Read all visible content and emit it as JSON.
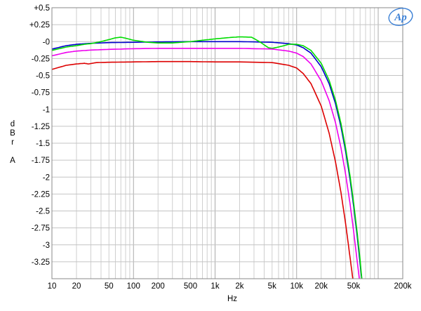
{
  "chart_data": {
    "type": "line",
    "xlabel": "Hz",
    "ylabel_lines": [
      "d",
      "B",
      "r",
      "",
      "A"
    ],
    "x_scale": "log",
    "xlim": [
      10,
      200000
    ],
    "ylim": [
      -3.5,
      0.5
    ],
    "grid": true,
    "x_ticks": [
      {
        "v": 10,
        "label": "10"
      },
      {
        "v": 20,
        "label": "20"
      },
      {
        "v": 50,
        "label": "50"
      },
      {
        "v": 100,
        "label": "100"
      },
      {
        "v": 200,
        "label": "200"
      },
      {
        "v": 500,
        "label": "500"
      },
      {
        "v": 1000,
        "label": "1k"
      },
      {
        "v": 2000,
        "label": "2k"
      },
      {
        "v": 5000,
        "label": "5k"
      },
      {
        "v": 10000,
        "label": "10k"
      },
      {
        "v": 20000,
        "label": "20k"
      },
      {
        "v": 50000,
        "label": "50k"
      },
      {
        "v": 200000,
        "label": "200k"
      }
    ],
    "y_ticks": [
      {
        "v": 0.5,
        "label": "+0.5"
      },
      {
        "v": 0.25,
        "label": "+0.25"
      },
      {
        "v": 0,
        "label": "-0"
      },
      {
        "v": -0.25,
        "label": "-0.25"
      },
      {
        "v": -0.5,
        "label": "-0.5"
      },
      {
        "v": -0.75,
        "label": "-0.75"
      },
      {
        "v": -1,
        "label": "-1"
      },
      {
        "v": -1.25,
        "label": "-1.25"
      },
      {
        "v": -1.5,
        "label": "-1.5"
      },
      {
        "v": -1.75,
        "label": "-1.75"
      },
      {
        "v": -2,
        "label": "-2"
      },
      {
        "v": -2.25,
        "label": "-2.25"
      },
      {
        "v": -2.5,
        "label": "-2.5"
      },
      {
        "v": -2.75,
        "label": "-2.75"
      },
      {
        "v": -3,
        "label": "-3"
      },
      {
        "v": -3.25,
        "label": "-3.25"
      }
    ],
    "series": [
      {
        "color": "#0000cc",
        "points": [
          [
            10,
            -0.11
          ],
          [
            15,
            -0.06
          ],
          [
            20,
            -0.04
          ],
          [
            30,
            -0.025
          ],
          [
            50,
            -0.015
          ],
          [
            100,
            -0.01
          ],
          [
            200,
            -0.005
          ],
          [
            500,
            0.0
          ],
          [
            1000,
            0.0
          ],
          [
            2000,
            0.0
          ],
          [
            5000,
            -0.01
          ],
          [
            8000,
            -0.03
          ],
          [
            10000,
            -0.05
          ],
          [
            12000,
            -0.09
          ],
          [
            15000,
            -0.17
          ],
          [
            20000,
            -0.37
          ],
          [
            25000,
            -0.62
          ],
          [
            30000,
            -0.92
          ],
          [
            35000,
            -1.26
          ],
          [
            40000,
            -1.63
          ],
          [
            45000,
            -2.02
          ],
          [
            50000,
            -2.43
          ],
          [
            55000,
            -2.85
          ],
          [
            60000,
            -3.28
          ],
          [
            64000,
            -3.6
          ]
        ]
      },
      {
        "color": "#00dd00",
        "points": [
          [
            10,
            -0.13
          ],
          [
            15,
            -0.08
          ],
          [
            20,
            -0.06
          ],
          [
            25,
            -0.04
          ],
          [
            30,
            -0.03
          ],
          [
            40,
            0.0
          ],
          [
            50,
            0.03
          ],
          [
            60,
            0.055
          ],
          [
            70,
            0.065
          ],
          [
            80,
            0.05
          ],
          [
            100,
            0.02
          ],
          [
            150,
            -0.01
          ],
          [
            200,
            -0.02
          ],
          [
            300,
            -0.02
          ],
          [
            500,
            0.0
          ],
          [
            700,
            0.02
          ],
          [
            1000,
            0.04
          ],
          [
            1500,
            0.06
          ],
          [
            2000,
            0.07
          ],
          [
            2800,
            0.065
          ],
          [
            3500,
            0.0
          ],
          [
            4500,
            -0.09
          ],
          [
            5000,
            -0.1
          ],
          [
            6000,
            -0.08
          ],
          [
            7000,
            -0.06
          ],
          [
            8000,
            -0.04
          ],
          [
            10000,
            -0.04
          ],
          [
            12000,
            -0.06
          ],
          [
            15000,
            -0.13
          ],
          [
            20000,
            -0.32
          ],
          [
            25000,
            -0.57
          ],
          [
            30000,
            -0.87
          ],
          [
            35000,
            -1.21
          ],
          [
            40000,
            -1.58
          ],
          [
            45000,
            -1.97
          ],
          [
            50000,
            -2.38
          ],
          [
            55000,
            -2.8
          ],
          [
            60000,
            -3.22
          ],
          [
            64000,
            -3.6
          ]
        ]
      },
      {
        "color": "#ee00ee",
        "points": [
          [
            10,
            -0.21
          ],
          [
            15,
            -0.16
          ],
          [
            20,
            -0.14
          ],
          [
            30,
            -0.125
          ],
          [
            50,
            -0.115
          ],
          [
            100,
            -0.105
          ],
          [
            200,
            -0.1
          ],
          [
            500,
            -0.1
          ],
          [
            1000,
            -0.1
          ],
          [
            2000,
            -0.1
          ],
          [
            5000,
            -0.11
          ],
          [
            8000,
            -0.14
          ],
          [
            10000,
            -0.17
          ],
          [
            12000,
            -0.22
          ],
          [
            15000,
            -0.33
          ],
          [
            20000,
            -0.58
          ],
          [
            25000,
            -0.87
          ],
          [
            30000,
            -1.2
          ],
          [
            35000,
            -1.57
          ],
          [
            40000,
            -1.97
          ],
          [
            45000,
            -2.38
          ],
          [
            50000,
            -2.8
          ],
          [
            55000,
            -3.22
          ],
          [
            60000,
            -3.6
          ]
        ]
      },
      {
        "color": "#dd0000",
        "points": [
          [
            10,
            -0.41
          ],
          [
            15,
            -0.35
          ],
          [
            20,
            -0.33
          ],
          [
            25,
            -0.32
          ],
          [
            28,
            -0.33
          ],
          [
            35,
            -0.31
          ],
          [
            50,
            -0.305
          ],
          [
            100,
            -0.3
          ],
          [
            200,
            -0.295
          ],
          [
            500,
            -0.295
          ],
          [
            1000,
            -0.3
          ],
          [
            2000,
            -0.3
          ],
          [
            5000,
            -0.31
          ],
          [
            8000,
            -0.35
          ],
          [
            10000,
            -0.39
          ],
          [
            12000,
            -0.47
          ],
          [
            15000,
            -0.62
          ],
          [
            20000,
            -0.95
          ],
          [
            25000,
            -1.35
          ],
          [
            30000,
            -1.78
          ],
          [
            35000,
            -2.23
          ],
          [
            40000,
            -2.7
          ],
          [
            45000,
            -3.17
          ],
          [
            50000,
            -3.6
          ]
        ]
      }
    ]
  }
}
